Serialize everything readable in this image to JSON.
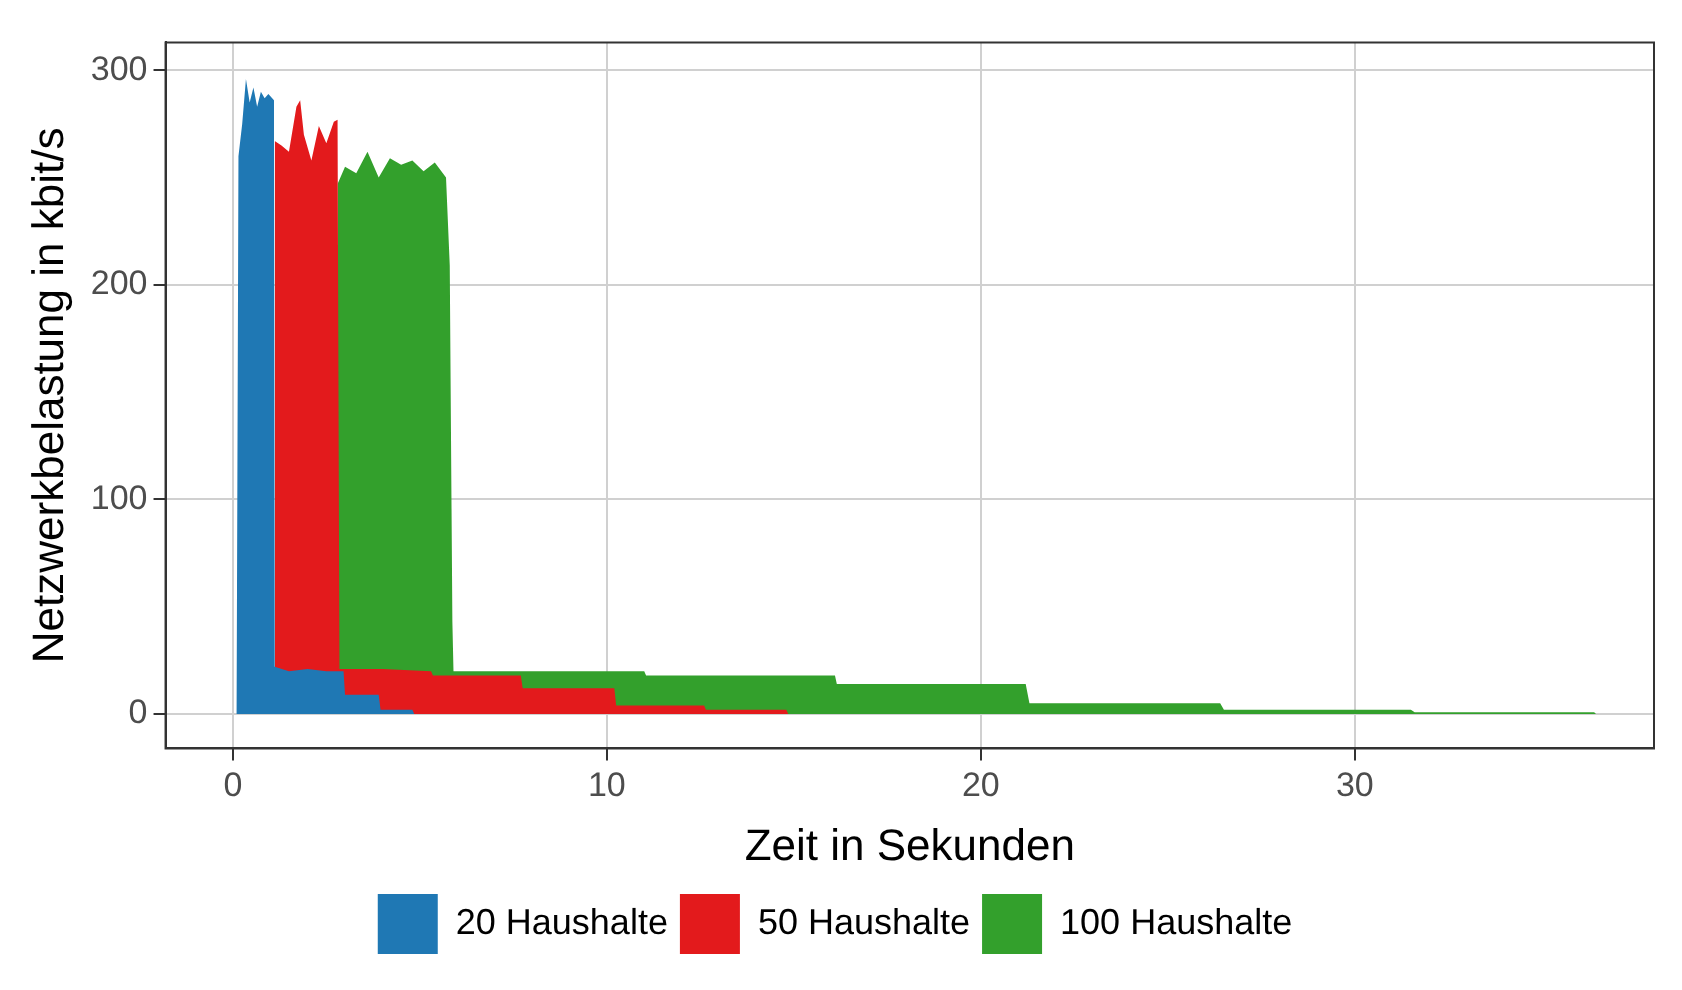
{
  "chart_data": {
    "type": "area",
    "xlabel": "Zeit in Sekunden",
    "ylabel": "Netzwerkbelastung in kbit/s",
    "xlim": [
      -1.8,
      38
    ],
    "ylim": [
      -16,
      313
    ],
    "xticks": [
      0,
      10,
      20,
      30
    ],
    "yticks": [
      0,
      100,
      200,
      300
    ],
    "grid": true,
    "legend": "bottom",
    "marker": "none",
    "series": [
      {
        "name": "20 Haushalte",
        "color": "#1f78b4",
        "x": [
          0,
          0.1,
          0.15,
          0.25,
          0.35,
          0.45,
          0.55,
          0.65,
          0.75,
          0.85,
          0.95,
          1.1,
          1.12,
          1.5,
          2,
          2.5,
          2.96,
          3,
          3.9,
          3.95,
          4.8,
          4.85,
          37
        ],
        "values": [
          0,
          0,
          260,
          275,
          296,
          285,
          292,
          283,
          290,
          287,
          289,
          286,
          22,
          20,
          21,
          20,
          20,
          9,
          9,
          2,
          2,
          0,
          0
        ]
      },
      {
        "name": "50 Haushalte",
        "color": "#e31a1c",
        "x": [
          1.12,
          1.12,
          1.3,
          1.5,
          1.7,
          1.8,
          1.9,
          2.1,
          2.3,
          2.5,
          2.7,
          2.8,
          2.85,
          4,
          5.3,
          5.35,
          7.7,
          7.75,
          10.2,
          10.25,
          12.6,
          12.65,
          14.8,
          14.85
        ],
        "values": [
          0,
          267,
          265,
          262,
          283,
          286,
          270,
          258,
          274,
          266,
          276,
          277,
          21,
          21,
          20,
          18,
          18,
          12,
          12,
          4,
          4,
          2,
          2,
          0
        ]
      },
      {
        "name": "100 Haushalte",
        "color": "#33a02c",
        "x": [
          2.8,
          2.8,
          3,
          3.3,
          3.6,
          3.9,
          4.2,
          4.5,
          4.8,
          5.1,
          5.4,
          5.7,
          5.8,
          5.87,
          5.9,
          11,
          11.05,
          16.1,
          16.15,
          21.2,
          21.3,
          26.4,
          26.5,
          31.5,
          31.6,
          36.4,
          36.45
        ],
        "values": [
          0,
          247,
          255,
          252,
          262,
          250,
          259,
          256,
          258,
          253,
          257,
          250,
          209,
          43,
          20,
          20,
          18,
          18,
          14,
          14,
          5,
          5,
          2,
          2,
          0.8,
          0.8,
          0
        ]
      }
    ]
  }
}
